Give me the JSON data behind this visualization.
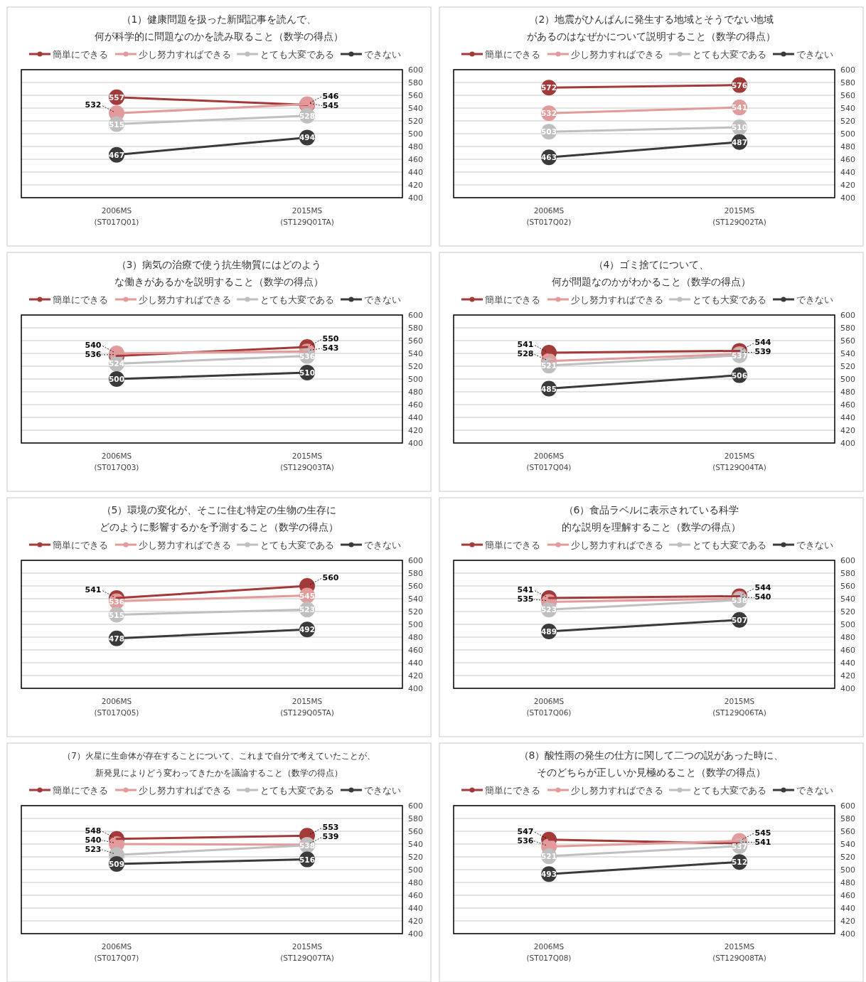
{
  "chart_data": [
    {
      "type": "line",
      "title": "（1）健康問題を扱った新聞記事を読んで、何が科学的に問題なのかを読み取ること（数学の得点）",
      "categories": [
        "2006MS\n(ST017Q01)",
        "2015MS\n(ST129Q01TA)"
      ],
      "series": [
        {
          "name": "簡単にできる",
          "color": "#a33a3a",
          "values": [
            557,
            545
          ]
        },
        {
          "name": "少し努力すればできる",
          "color": "#e39a9a",
          "values": [
            532,
            546
          ]
        },
        {
          "name": "とても大変である",
          "color": "#bfbfbf",
          "values": [
            515,
            528
          ]
        },
        {
          "name": "できない",
          "color": "#3a3a3a",
          "values": [
            467,
            494
          ]
        }
      ],
      "ylim": [
        400,
        600
      ],
      "yticks": [
        400,
        420,
        440,
        460,
        480,
        500,
        520,
        540,
        560,
        580,
        600
      ],
      "grid": "y",
      "legend": "top",
      "marker": "circle",
      "data_labels": true
    },
    {
      "type": "line",
      "title": "（2）地震がひんぱんに発生する地域とそうでない地域があるのはなぜかについて説明すること（数学の得点）",
      "categories": [
        "2006MS\n(ST017Q02)",
        "2015MS\n(ST129Q02TA)"
      ],
      "series": [
        {
          "name": "簡単にできる",
          "color": "#a33a3a",
          "values": [
            572,
            576
          ]
        },
        {
          "name": "少し努力すればできる",
          "color": "#e39a9a",
          "values": [
            532,
            541
          ]
        },
        {
          "name": "とても大変である",
          "color": "#bfbfbf",
          "values": [
            503,
            510
          ]
        },
        {
          "name": "できない",
          "color": "#3a3a3a",
          "values": [
            463,
            487
          ]
        }
      ],
      "ylim": [
        400,
        600
      ],
      "yticks": [
        400,
        420,
        440,
        460,
        480,
        500,
        520,
        540,
        560,
        580,
        600
      ],
      "grid": "y",
      "legend": "top",
      "marker": "circle",
      "data_labels": true
    },
    {
      "type": "line",
      "title": "（3）病気の治療で使う抗生物質にはどのような働きがあるかを説明すること（数学の得点）",
      "categories": [
        "2006MS\n(ST017Q03)",
        "2015MS\n(ST129Q03TA)"
      ],
      "series": [
        {
          "name": "簡単にできる",
          "color": "#a33a3a",
          "values": [
            536,
            550
          ]
        },
        {
          "name": "少し努力すればできる",
          "color": "#e39a9a",
          "values": [
            540,
            543
          ]
        },
        {
          "name": "とても大変である",
          "color": "#bfbfbf",
          "values": [
            524,
            536
          ]
        },
        {
          "name": "できない",
          "color": "#3a3a3a",
          "values": [
            500,
            510
          ]
        }
      ],
      "ylim": [
        400,
        600
      ],
      "yticks": [
        400,
        420,
        440,
        460,
        480,
        500,
        520,
        540,
        560,
        580,
        600
      ],
      "grid": "y",
      "legend": "top",
      "marker": "circle",
      "data_labels": true
    },
    {
      "type": "line",
      "title": "（4）ゴミ捨てについて、何が問題なのかがわかること（数学の得点）",
      "categories": [
        "2006MS\n(ST017Q04)",
        "2015MS\n(ST129Q04TA)"
      ],
      "series": [
        {
          "name": "簡単にできる",
          "color": "#a33a3a",
          "values": [
            541,
            544
          ]
        },
        {
          "name": "少し努力すればできる",
          "color": "#e39a9a",
          "values": [
            528,
            539
          ]
        },
        {
          "name": "とても大変である",
          "color": "#bfbfbf",
          "values": [
            521,
            537
          ]
        },
        {
          "name": "できない",
          "color": "#3a3a3a",
          "values": [
            485,
            506
          ]
        }
      ],
      "ylim": [
        400,
        600
      ],
      "yticks": [
        400,
        420,
        440,
        460,
        480,
        500,
        520,
        540,
        560,
        580,
        600
      ],
      "grid": "y",
      "legend": "top",
      "marker": "circle",
      "data_labels": true
    },
    {
      "type": "line",
      "title": "（5）環境の変化が、そこに住む特定の生物の生存にどのように影響するかを予測すること（数学の得点）",
      "categories": [
        "2006MS\n(ST017Q05)",
        "2015MS\n(ST129Q05TA)"
      ],
      "series": [
        {
          "name": "簡単にできる",
          "color": "#a33a3a",
          "values": [
            541,
            560
          ]
        },
        {
          "name": "少し努力すればできる",
          "color": "#e39a9a",
          "values": [
            536,
            545
          ]
        },
        {
          "name": "とても大変である",
          "color": "#bfbfbf",
          "values": [
            515,
            523
          ]
        },
        {
          "name": "できない",
          "color": "#3a3a3a",
          "values": [
            478,
            492
          ]
        }
      ],
      "ylim": [
        400,
        600
      ],
      "yticks": [
        400,
        420,
        440,
        460,
        480,
        500,
        520,
        540,
        560,
        580,
        600
      ],
      "grid": "y",
      "legend": "top",
      "marker": "circle",
      "data_labels": true
    },
    {
      "type": "line",
      "title": "（6）食品ラベルに表示されている科学的な説明を理解すること（数学の得点）",
      "categories": [
        "2006MS\n(ST017Q06)",
        "2015MS\n(ST129Q06TA)"
      ],
      "series": [
        {
          "name": "簡単にできる",
          "color": "#a33a3a",
          "values": [
            541,
            544
          ]
        },
        {
          "name": "少し努力すればできる",
          "color": "#e39a9a",
          "values": [
            535,
            540
          ]
        },
        {
          "name": "とても大変である",
          "color": "#bfbfbf",
          "values": [
            523,
            538
          ]
        },
        {
          "name": "できない",
          "color": "#3a3a3a",
          "values": [
            489,
            507
          ]
        }
      ],
      "ylim": [
        400,
        600
      ],
      "yticks": [
        400,
        420,
        440,
        460,
        480,
        500,
        520,
        540,
        560,
        580,
        600
      ],
      "grid": "y",
      "legend": "top",
      "marker": "circle",
      "data_labels": true
    },
    {
      "type": "line",
      "title": "（7）火星に生命体が存在することについて、これまで自分で考えていたことが、新発見によりどう変わってきたかを議論すること（数学の得点）",
      "categories": [
        "2006MS\n(ST017Q07)",
        "2015MS\n(ST129Q07TA)"
      ],
      "series": [
        {
          "name": "簡単にできる",
          "color": "#a33a3a",
          "values": [
            548,
            553
          ]
        },
        {
          "name": "少し努力すればできる",
          "color": "#e39a9a",
          "values": [
            540,
            539
          ]
        },
        {
          "name": "とても大変である",
          "color": "#bfbfbf",
          "values": [
            523,
            538
          ]
        },
        {
          "name": "できない",
          "color": "#3a3a3a",
          "values": [
            509,
            516
          ]
        }
      ],
      "ylim": [
        400,
        600
      ],
      "yticks": [
        400,
        420,
        440,
        460,
        480,
        500,
        520,
        540,
        560,
        580,
        600
      ],
      "grid": "y",
      "legend": "top",
      "marker": "circle",
      "data_labels": true
    },
    {
      "type": "line",
      "title": "（8）酸性雨の発生の仕方に関して二つの説があった時に、そのどちらが正しいか見極めること（数学の得点）",
      "categories": [
        "2006MS\n(ST017Q08)",
        "2015MS\n(ST129Q08TA)"
      ],
      "series": [
        {
          "name": "簡単にできる",
          "color": "#a33a3a",
          "values": [
            547,
            541
          ]
        },
        {
          "name": "少し努力すればできる",
          "color": "#e39a9a",
          "values": [
            536,
            545
          ]
        },
        {
          "name": "とても大変である",
          "color": "#bfbfbf",
          "values": [
            521,
            537
          ]
        },
        {
          "name": "できない",
          "color": "#3a3a3a",
          "values": [
            493,
            512
          ]
        }
      ],
      "ylim": [
        400,
        600
      ],
      "yticks": [
        400,
        420,
        440,
        460,
        480,
        500,
        520,
        540,
        560,
        580,
        600
      ],
      "grid": "y",
      "legend": "top",
      "marker": "circle",
      "data_labels": true
    }
  ]
}
